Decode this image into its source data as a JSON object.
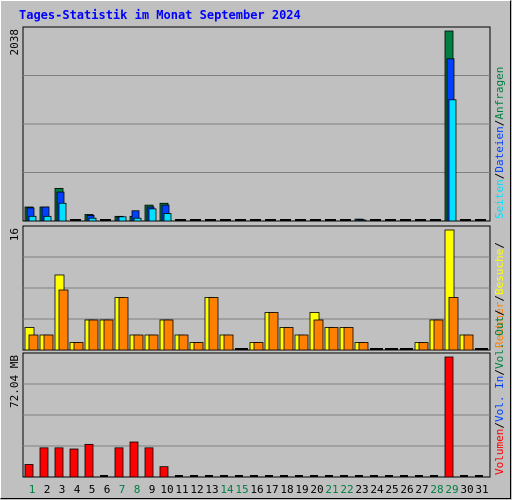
{
  "title": "Tages-Statistik im Monat September 2024",
  "colors": {
    "hits": "#008040",
    "files": "#0040ff",
    "pages": "#00e0ff",
    "visits": "#ffff00",
    "sites": "#ff8000",
    "kbytes": "#ff0000",
    "weekday": "#008040",
    "weekend": "#008040"
  },
  "chart_data": [
    {
      "type": "bar",
      "panel": "top",
      "ymax_label": "2038",
      "ylim": [
        0,
        2038
      ],
      "legend_right": [
        "Anfragen",
        "Dateien",
        "Seiten"
      ],
      "categories": [
        "1",
        "2",
        "3",
        "4",
        "5",
        "6",
        "7",
        "8",
        "9",
        "10",
        "11",
        "12",
        "13",
        "14",
        "15",
        "16",
        "17",
        "18",
        "19",
        "20",
        "21",
        "22",
        "23",
        "24",
        "25",
        "26",
        "27",
        "28",
        "29",
        "30",
        "31"
      ],
      "series": [
        {
          "name": "Anfragen",
          "values": [
            150,
            150,
            350,
            0,
            70,
            0,
            50,
            50,
            170,
            190,
            0,
            0,
            0,
            0,
            0,
            0,
            0,
            0,
            0,
            0,
            0,
            0,
            20,
            0,
            0,
            0,
            0,
            0,
            2038,
            0,
            0
          ]
        },
        {
          "name": "Dateien",
          "values": [
            140,
            150,
            310,
            0,
            60,
            0,
            40,
            110,
            150,
            170,
            0,
            0,
            0,
            0,
            0,
            0,
            0,
            0,
            0,
            0,
            0,
            0,
            15,
            0,
            0,
            0,
            0,
            0,
            1740,
            0,
            0
          ]
        },
        {
          "name": "Seiten",
          "values": [
            50,
            50,
            190,
            0,
            30,
            0,
            45,
            30,
            130,
            80,
            0,
            0,
            0,
            0,
            0,
            0,
            0,
            0,
            0,
            0,
            0,
            0,
            10,
            0,
            0,
            0,
            0,
            0,
            1300,
            0,
            0
          ]
        }
      ]
    },
    {
      "type": "bar",
      "panel": "middle",
      "ymax_label": "16",
      "ylim": [
        0,
        16
      ],
      "legend_right": [
        "Besuche",
        "Rechner"
      ],
      "series": [
        {
          "name": "Besuche",
          "values": [
            3,
            2,
            10,
            1,
            4,
            4,
            7,
            2,
            2,
            4,
            2,
            1,
            7,
            2,
            0,
            1,
            5,
            3,
            2,
            5,
            3,
            3,
            1,
            0,
            0,
            0,
            1,
            4,
            16,
            2,
            0
          ]
        },
        {
          "name": "Rechner",
          "values": [
            2,
            2,
            8,
            1,
            4,
            4,
            7,
            2,
            2,
            4,
            2,
            1,
            7,
            2,
            0,
            1,
            5,
            3,
            2,
            4,
            3,
            3,
            1,
            0,
            0,
            0,
            1,
            4,
            7,
            2,
            0
          ]
        }
      ]
    },
    {
      "type": "bar",
      "panel": "bottom",
      "ymax_label": "72.04 MB",
      "ylim": [
        0,
        72.04
      ],
      "legend_right": [
        "Volumen",
        "Vol. In",
        "Vol. Out"
      ],
      "series": [
        {
          "name": "Volumen",
          "values": [
            7.5,
            17.5,
            17.5,
            16.8,
            19.6,
            0,
            17.5,
            21,
            17.5,
            6.2,
            0,
            0,
            0,
            0,
            0,
            0,
            0,
            0,
            0,
            0,
            0,
            0,
            0,
            0,
            0,
            0,
            0,
            0,
            72.04,
            0,
            0
          ]
        }
      ]
    }
  ],
  "x_labels": [
    {
      "text": "1",
      "color": "#008040"
    },
    {
      "text": "2",
      "color": "#000000"
    },
    {
      "text": "3",
      "color": "#000000"
    },
    {
      "text": "4",
      "color": "#000000"
    },
    {
      "text": "5",
      "color": "#000000"
    },
    {
      "text": "6",
      "color": "#000000"
    },
    {
      "text": "7",
      "color": "#008040"
    },
    {
      "text": "8",
      "color": "#008040"
    },
    {
      "text": "9",
      "color": "#000000"
    },
    {
      "text": "10",
      "color": "#000000"
    },
    {
      "text": "11",
      "color": "#000000"
    },
    {
      "text": "12",
      "color": "#000000"
    },
    {
      "text": "13",
      "color": "#000000"
    },
    {
      "text": "14",
      "color": "#008040"
    },
    {
      "text": "15",
      "color": "#008040"
    },
    {
      "text": "16",
      "color": "#000000"
    },
    {
      "text": "17",
      "color": "#000000"
    },
    {
      "text": "18",
      "color": "#000000"
    },
    {
      "text": "19",
      "color": "#000000"
    },
    {
      "text": "20",
      "color": "#000000"
    },
    {
      "text": "21",
      "color": "#008040"
    },
    {
      "text": "22",
      "color": "#008040"
    },
    {
      "text": "23",
      "color": "#000000"
    },
    {
      "text": "24",
      "color": "#000000"
    },
    {
      "text": "25",
      "color": "#000000"
    },
    {
      "text": "26",
      "color": "#000000"
    },
    {
      "text": "27",
      "color": "#000000"
    },
    {
      "text": "28",
      "color": "#008040"
    },
    {
      "text": "29",
      "color": "#008040"
    },
    {
      "text": "30",
      "color": "#000000"
    },
    {
      "text": "31",
      "color": "#000000"
    }
  ],
  "side_legends": {
    "top": [
      {
        "text": "Seiten",
        "color": "#00e0ff"
      },
      {
        "text": "/",
        "color": "#000000"
      },
      {
        "text": "Dateien",
        "color": "#0040ff"
      },
      {
        "text": "/",
        "color": "#000000"
      },
      {
        "text": "Anfragen",
        "color": "#008040"
      }
    ],
    "middle": [
      {
        "text": "Rechner",
        "color": "#ff8000"
      },
      {
        "text": "/",
        "color": "#000000"
      },
      {
        "text": "Besuche",
        "color": "#ffff00"
      },
      {
        "text": "/",
        "color": "#000000"
      }
    ],
    "bottom": [
      {
        "text": "Volumen",
        "color": "#ff0000"
      },
      {
        "text": "/",
        "color": "#000000"
      },
      {
        "text": "Vol. In",
        "color": "#0040ff"
      },
      {
        "text": "/",
        "color": "#000000"
      },
      {
        "text": "Vol. Out",
        "color": "#008040"
      },
      {
        "text": "/",
        "color": "#000000"
      }
    ]
  }
}
